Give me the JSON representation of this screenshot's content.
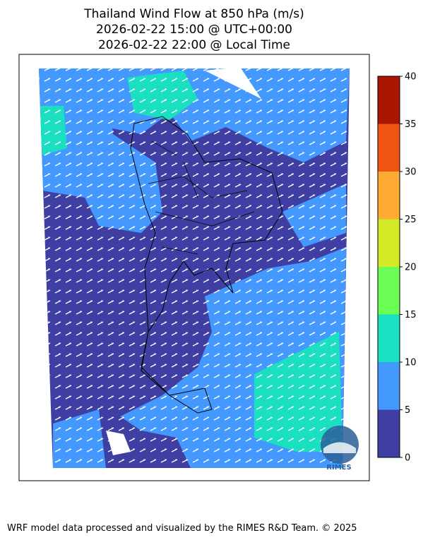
{
  "title": [
    "Thailand Wind Flow at 850 hPa (m/s)",
    "2026-02-22 15:00 @ UTC+00:00",
    "2026-02-22 22:00 @ Local Time"
  ],
  "colorbar": {
    "ticks": [
      0,
      5,
      10,
      15,
      20,
      25,
      30,
      35,
      40
    ],
    "colors": [
      "#3f3fa3",
      "#4499ff",
      "#1adfc0",
      "#6bff55",
      "#d2e926",
      "#ffab33",
      "#ef5410",
      "#a91601"
    ]
  },
  "logo": "RIMES",
  "footer": "WRF model data processed and visualized by the RIMES R&D Team. © 2025"
}
